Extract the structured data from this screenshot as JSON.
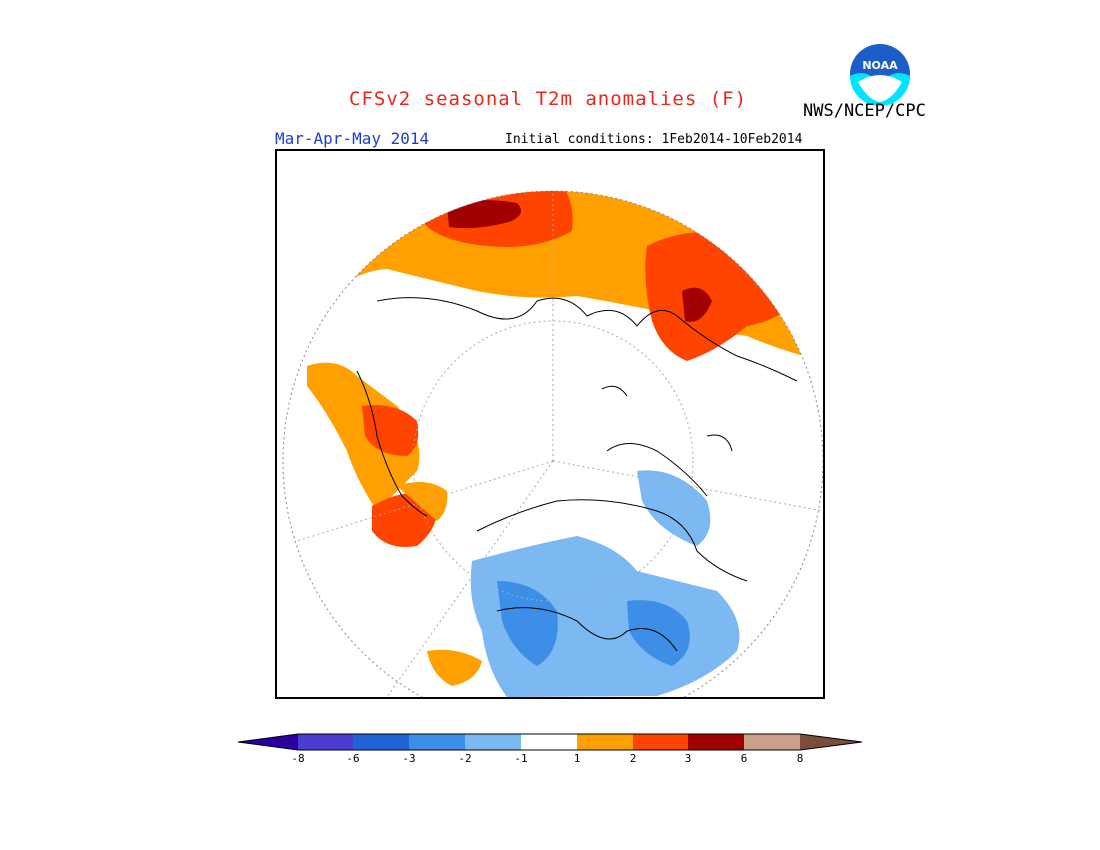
{
  "header": {
    "title": "CFSv2 seasonal T2m anomalies (F)",
    "agency": "NWS/NCEP/CPC",
    "period": "Mar-Apr-May 2014",
    "initial_conditions": "Initial conditions: 1Feb2014-10Feb2014",
    "logo_text": "NOAA"
  },
  "map": {
    "projection": "north polar stereographic",
    "variable": "2m temperature anomaly",
    "units": "F"
  },
  "legend": {
    "ticks": [
      "-8",
      "-6",
      "-3",
      "-2",
      "-1",
      "1",
      "2",
      "3",
      "6",
      "8"
    ],
    "colors": [
      "#2a00a0",
      "#4b3cd0",
      "#1f64d6",
      "#3c8ee6",
      "#7cb8f2",
      "#ffffff",
      "#ff9f00",
      "#ff4400",
      "#a00000",
      "#c9a08a",
      "#7a4e3a"
    ]
  }
}
